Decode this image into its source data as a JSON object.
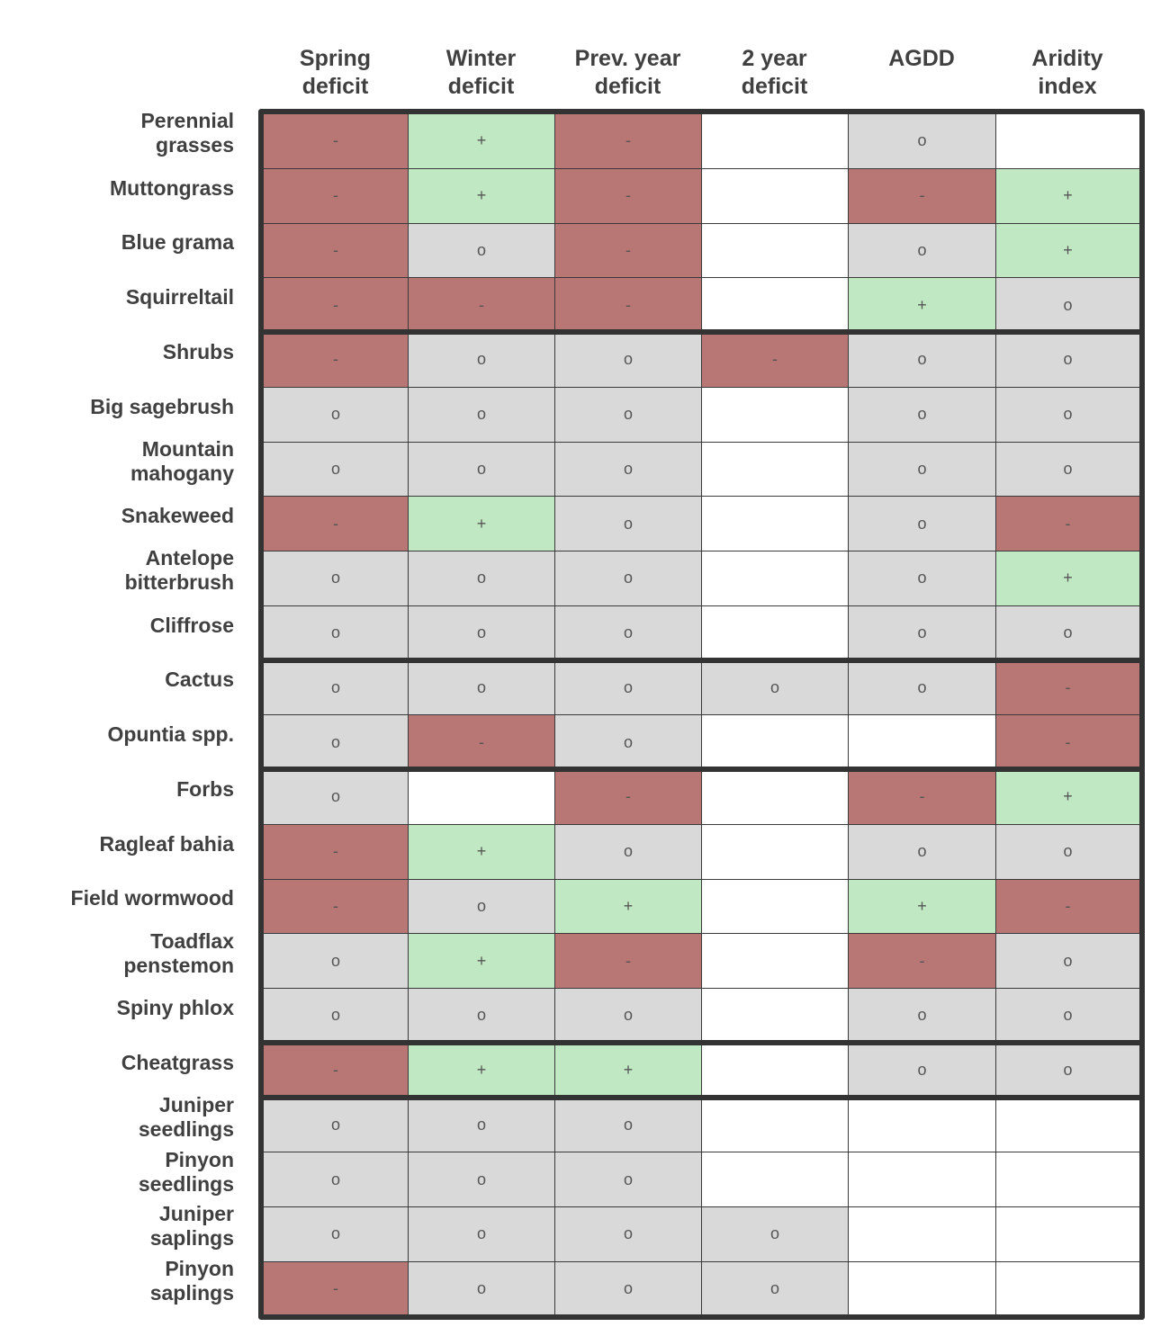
{
  "chart_data": {
    "type": "table",
    "columns": [
      "Spring\ndeficit",
      "Winter\ndeficit",
      "Prev. year\ndeficit",
      "2 year\ndeficit",
      "AGDD",
      "Aridity\nindex"
    ],
    "rows": [
      {
        "label": "Perennial\ngrasses",
        "values": [
          "-",
          "+",
          "-",
          "",
          "o",
          ""
        ]
      },
      {
        "label": "Muttongrass",
        "values": [
          "-",
          "+",
          "-",
          "",
          "-",
          "+"
        ]
      },
      {
        "label": "Blue  grama",
        "values": [
          "-",
          "o",
          "-",
          "",
          "o",
          "+"
        ]
      },
      {
        "label": "Squirreltail",
        "values": [
          "-",
          "-",
          "-",
          "",
          "+",
          "o"
        ]
      },
      {
        "label": "Shrubs",
        "values": [
          "-",
          "o",
          "o",
          "-",
          "o",
          "o"
        ]
      },
      {
        "label": "Big sagebrush",
        "values": [
          "o",
          "o",
          "o",
          "",
          "o",
          "o"
        ]
      },
      {
        "label": "Mountain\nmahogany",
        "values": [
          "o",
          "o",
          "o",
          "",
          "o",
          "o"
        ]
      },
      {
        "label": "Snakeweed",
        "values": [
          "-",
          "+",
          "o",
          "",
          "o",
          "-"
        ]
      },
      {
        "label": "Antelope\nbitterbrush",
        "values": [
          "o",
          "o",
          "o",
          "",
          "o",
          "+"
        ]
      },
      {
        "label": "Cliffrose",
        "values": [
          "o",
          "o",
          "o",
          "",
          "o",
          "o"
        ]
      },
      {
        "label": "Cactus",
        "values": [
          "o",
          "o",
          "o",
          "o",
          "o",
          "-"
        ]
      },
      {
        "label": "Opuntia spp.",
        "values": [
          "o",
          "-",
          "o",
          "",
          "",
          "-"
        ]
      },
      {
        "label": "Forbs",
        "values": [
          "o",
          "",
          "-",
          "",
          "-",
          "+"
        ]
      },
      {
        "label": "Ragleaf bahia",
        "values": [
          "-",
          "+",
          "o",
          "",
          "o",
          "o"
        ]
      },
      {
        "label": "Field  wormwood",
        "values": [
          "-",
          "o",
          "+",
          "",
          "+",
          "-"
        ]
      },
      {
        "label": "Toadflax\npenstemon",
        "values": [
          "o",
          "+",
          "-",
          "",
          "-",
          "o"
        ]
      },
      {
        "label": "Spiny phlox",
        "values": [
          "o",
          "o",
          "o",
          "",
          "o",
          "o"
        ]
      },
      {
        "label": "Cheatgrass",
        "values": [
          "-",
          "+",
          "+",
          "",
          "o",
          "o"
        ]
      },
      {
        "label": "Juniper\nseedlings",
        "values": [
          "o",
          "o",
          "o",
          "",
          "",
          ""
        ]
      },
      {
        "label": "Pinyon\nseedlings",
        "values": [
          "o",
          "o",
          "o",
          "",
          "",
          ""
        ]
      },
      {
        "label": "Juniper\nsaplings",
        "values": [
          "o",
          "o",
          "o",
          "o",
          "",
          ""
        ]
      },
      {
        "label": "Pinyon\nsaplings",
        "values": [
          "-",
          "o",
          "o",
          "o",
          "",
          ""
        ]
      }
    ],
    "groups": [
      [
        0,
        3
      ],
      [
        4,
        9
      ],
      [
        10,
        11
      ],
      [
        12,
        16
      ],
      [
        17,
        17
      ],
      [
        18,
        21
      ]
    ],
    "colors": {
      "-": "#b87674",
      "+": "#c0e8c2",
      "o": "#d9d9d9",
      "": "#ffffff"
    }
  }
}
